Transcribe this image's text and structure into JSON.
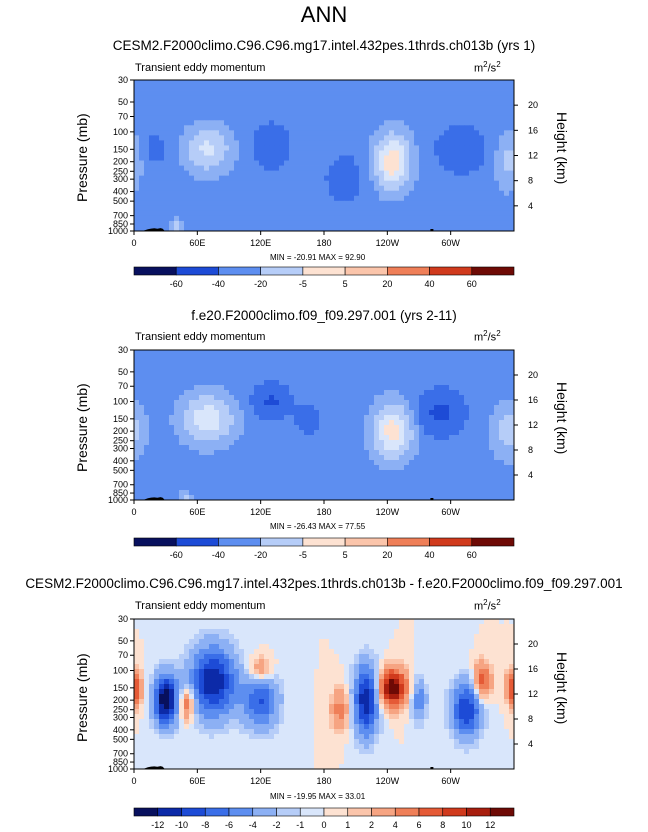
{
  "page_title": "ANN",
  "panels": [
    {
      "title": "CESM2.F2000climo.C96.C96.mg17.intel.432pes.1thrds.ch013b (yrs 1)",
      "subtitle": "Transient eddy momentum",
      "units_base": "m",
      "units_exp1": "2",
      "units_mid": "/s",
      "units_exp2": "2",
      "ylabel": "Pressure (mb)",
      "ylabel_right": "Height (km)",
      "minmax": "MIN = -20.91  MAX = 92.90",
      "x_ticks": [
        "0",
        "60E",
        "120E",
        "180",
        "120W",
        "60W"
      ],
      "y_ticks": [
        "30",
        "50",
        "70",
        "100",
        "150",
        "200",
        "250",
        "300",
        "400",
        "500",
        "700",
        "850",
        "1000"
      ],
      "height_ticks": [
        "20",
        "16",
        "12",
        "8",
        "4"
      ],
      "colorbar_labels": [
        "-60",
        "-40",
        "-20",
        "-5",
        "5",
        "20",
        "40",
        "60"
      ]
    },
    {
      "title": "f.e20.F2000climo.f09_f09.297.001 (yrs 2-11)",
      "subtitle": "Transient eddy momentum",
      "units_base": "m",
      "units_exp1": "2",
      "units_mid": "/s",
      "units_exp2": "2",
      "ylabel": "Pressure (mb)",
      "ylabel_right": "Height (km)",
      "minmax": "MIN = -26.43  MAX = 77.55",
      "x_ticks": [
        "0",
        "60E",
        "120E",
        "180",
        "120W",
        "60W"
      ],
      "y_ticks": [
        "30",
        "50",
        "70",
        "100",
        "150",
        "200",
        "250",
        "300",
        "400",
        "500",
        "700",
        "850",
        "1000"
      ],
      "height_ticks": [
        "20",
        "16",
        "12",
        "8",
        "4"
      ],
      "colorbar_labels": [
        "-60",
        "-40",
        "-20",
        "-5",
        "5",
        "20",
        "40",
        "60"
      ]
    },
    {
      "title": "CESM2.F2000climo.C96.C96.mg17.intel.432pes.1thrds.ch013b - f.e20.F2000climo.f09_f09.297.001",
      "subtitle": "Transient eddy momentum",
      "units_base": "m",
      "units_exp1": "2",
      "units_mid": "/s",
      "units_exp2": "2",
      "ylabel": "Pressure (mb)",
      "ylabel_right": "Height (km)",
      "minmax": "MIN = -19.95  MAX = 33.01",
      "x_ticks": [
        "0",
        "60E",
        "120E",
        "180",
        "120W",
        "60W"
      ],
      "y_ticks": [
        "30",
        "50",
        "70",
        "100",
        "150",
        "200",
        "250",
        "300",
        "400",
        "500",
        "700",
        "850",
        "1000"
      ],
      "height_ticks": [
        "20",
        "16",
        "12",
        "8",
        "4"
      ],
      "colorbar_labels": [
        "-12",
        "-10",
        "-8",
        "-6",
        "-4",
        "-2",
        "-1",
        "0",
        "1",
        "2",
        "4",
        "6",
        "8",
        "10",
        "12"
      ]
    }
  ],
  "colors": {
    "full_field_palette": [
      "#08105e",
      "#0c2aa8",
      "#1d4bd6",
      "#3a6ee8",
      "#5d8ef0",
      "#8cb0f4",
      "#b6cdf8",
      "#d9e6fb",
      "#fde2d2",
      "#fbc5ab",
      "#f6a482",
      "#ef7f58",
      "#e55a36",
      "#d03a1d",
      "#a81e0e",
      "#6e0a05"
    ],
    "diff_palette": [
      "#08105e",
      "#0c2aa8",
      "#1d4bd6",
      "#3a6ee8",
      "#5d8ef0",
      "#8cb0f4",
      "#b6cdf8",
      "#d9e6fb",
      "#fde2d2",
      "#fbc5ab",
      "#f6a482",
      "#ef7f58",
      "#e55a36",
      "#d03a1d",
      "#a81e0e",
      "#6e0a05"
    ]
  },
  "chart_data": [
    {
      "type": "heatmap",
      "title": "CESM2.F2000climo.C96.C96.mg17.intel.432pes.1thrds.ch013b (yrs 1)",
      "xlabel": "",
      "ylabel": "Pressure (mb)",
      "x_range": [
        0,
        360
      ],
      "y_range_mb": [
        1000,
        30
      ],
      "log_scale_y": true,
      "features": [
        {
          "lon": 70,
          "p": 150,
          "amp": 45,
          "wlon": 14,
          "wlogp": 0.15
        },
        {
          "lon": 245,
          "p": 200,
          "amp": 75,
          "wlon": 11,
          "wlogp": 0.18
        },
        {
          "lon": 355,
          "p": 200,
          "amp": 25,
          "wlon": 8,
          "wlogp": 0.18
        },
        {
          "lon": 40,
          "p": 920,
          "amp": 30,
          "wlon": 4,
          "wlogp": 0.05
        },
        {
          "lon": 130,
          "p": 140,
          "amp": -18,
          "wlon": 12,
          "wlogp": 0.15
        },
        {
          "lon": 310,
          "p": 150,
          "amp": -20,
          "wlon": 15,
          "wlogp": 0.15
        },
        {
          "lon": 200,
          "p": 300,
          "amp": -10,
          "wlon": 15,
          "wlogp": 0.2
        },
        {
          "lon": 20,
          "p": 150,
          "amp": -8,
          "wlon": 10,
          "wlogp": 0.15
        }
      ],
      "colorbar_levels": [
        -60,
        -40,
        -20,
        -5,
        5,
        20,
        40,
        60
      ]
    },
    {
      "type": "heatmap",
      "title": "f.e20.F2000climo.f09_f09.297.001 (yrs 2-11)",
      "xlabel": "",
      "ylabel": "Pressure (mb)",
      "x_range": [
        0,
        360
      ],
      "y_range_mb": [
        1000,
        30
      ],
      "log_scale_y": true,
      "features": [
        {
          "lon": 70,
          "p": 150,
          "amp": 55,
          "wlon": 16,
          "wlogp": 0.16
        },
        {
          "lon": 245,
          "p": 200,
          "amp": 70,
          "wlon": 12,
          "wlogp": 0.18
        },
        {
          "lon": 355,
          "p": 200,
          "amp": 30,
          "wlon": 10,
          "wlogp": 0.18
        },
        {
          "lon": 48,
          "p": 920,
          "amp": 25,
          "wlon": 4,
          "wlogp": 0.05
        },
        {
          "lon": 130,
          "p": 100,
          "amp": -22,
          "wlon": 12,
          "wlogp": 0.12
        },
        {
          "lon": 290,
          "p": 130,
          "amp": -25,
          "wlon": 15,
          "wlogp": 0.15
        },
        {
          "lon": 165,
          "p": 150,
          "amp": -12,
          "wlon": 8,
          "wlogp": 0.12
        }
      ],
      "colorbar_levels": [
        -60,
        -40,
        -20,
        -5,
        5,
        20,
        40,
        60
      ]
    },
    {
      "type": "heatmap",
      "title": "CESM2.F2000climo.C96.C96.mg17.intel.432pes.1thrds.ch013b - f.e20.F2000climo.f09_f09.297.001",
      "xlabel": "",
      "ylabel": "Pressure (mb)",
      "x_range": [
        0,
        360
      ],
      "y_range_mb": [
        1000,
        30
      ],
      "log_scale_y": true,
      "features": [
        {
          "lon": 245,
          "p": 150,
          "amp": 14,
          "wlon": 9,
          "wlogp": 0.13
        },
        {
          "lon": 330,
          "p": 130,
          "amp": 8,
          "wlon": 6,
          "wlogp": 0.13
        },
        {
          "lon": 360,
          "p": 150,
          "amp": 9,
          "wlon": 5,
          "wlogp": 0.12
        },
        {
          "lon": 50,
          "p": 220,
          "amp": 7,
          "wlon": 5,
          "wlogp": 0.12
        },
        {
          "lon": 120,
          "p": 100,
          "amp": 5,
          "wlon": 8,
          "wlogp": 0.1
        },
        {
          "lon": 195,
          "p": 250,
          "amp": 5,
          "wlon": 6,
          "wlogp": 0.15
        },
        {
          "lon": 30,
          "p": 200,
          "amp": -14,
          "wlon": 8,
          "wlogp": 0.18
        },
        {
          "lon": 75,
          "p": 130,
          "amp": -12,
          "wlon": 15,
          "wlogp": 0.25
        },
        {
          "lon": 120,
          "p": 200,
          "amp": -8,
          "wlon": 12,
          "wlogp": 0.2
        },
        {
          "lon": 220,
          "p": 200,
          "amp": -12,
          "wlon": 8,
          "wlogp": 0.25
        },
        {
          "lon": 315,
          "p": 250,
          "amp": -10,
          "wlon": 10,
          "wlogp": 0.2
        },
        {
          "lon": 270,
          "p": 200,
          "amp": -6,
          "wlon": 5,
          "wlogp": 0.15
        }
      ],
      "colorbar_levels": [
        -12,
        -10,
        -8,
        -6,
        -4,
        -2,
        -1,
        0,
        1,
        2,
        4,
        6,
        8,
        10,
        12
      ]
    }
  ]
}
